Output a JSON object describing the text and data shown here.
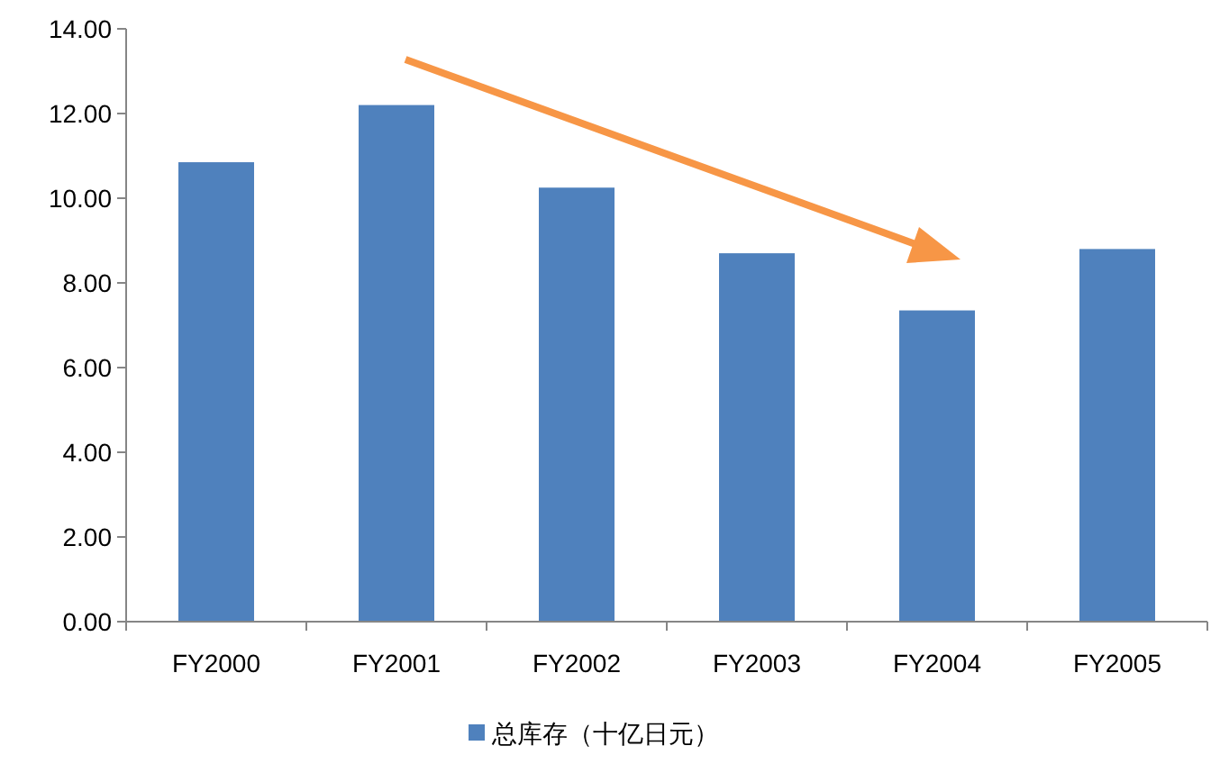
{
  "chart_data": {
    "type": "bar",
    "categories": [
      "FY2000",
      "FY2001",
      "FY2002",
      "FY2003",
      "FY2004",
      "FY2005"
    ],
    "series": [
      {
        "name": "总库存（十亿日元）",
        "color": "#4f81bd",
        "values": [
          10.85,
          12.2,
          10.25,
          8.7,
          7.35,
          8.8
        ]
      }
    ],
    "ylim": [
      0,
      14
    ],
    "yticks": [
      {
        "value": 0,
        "label": "0.00"
      },
      {
        "value": 2,
        "label": "2.00"
      },
      {
        "value": 4,
        "label": "4.00"
      },
      {
        "value": 6,
        "label": "6.00"
      },
      {
        "value": 8,
        "label": "8.00"
      },
      {
        "value": 10,
        "label": "10.00"
      },
      {
        "value": 12,
        "label": "12.00"
      },
      {
        "value": 14,
        "label": "14.00"
      }
    ],
    "legend": "bottom"
  }
}
